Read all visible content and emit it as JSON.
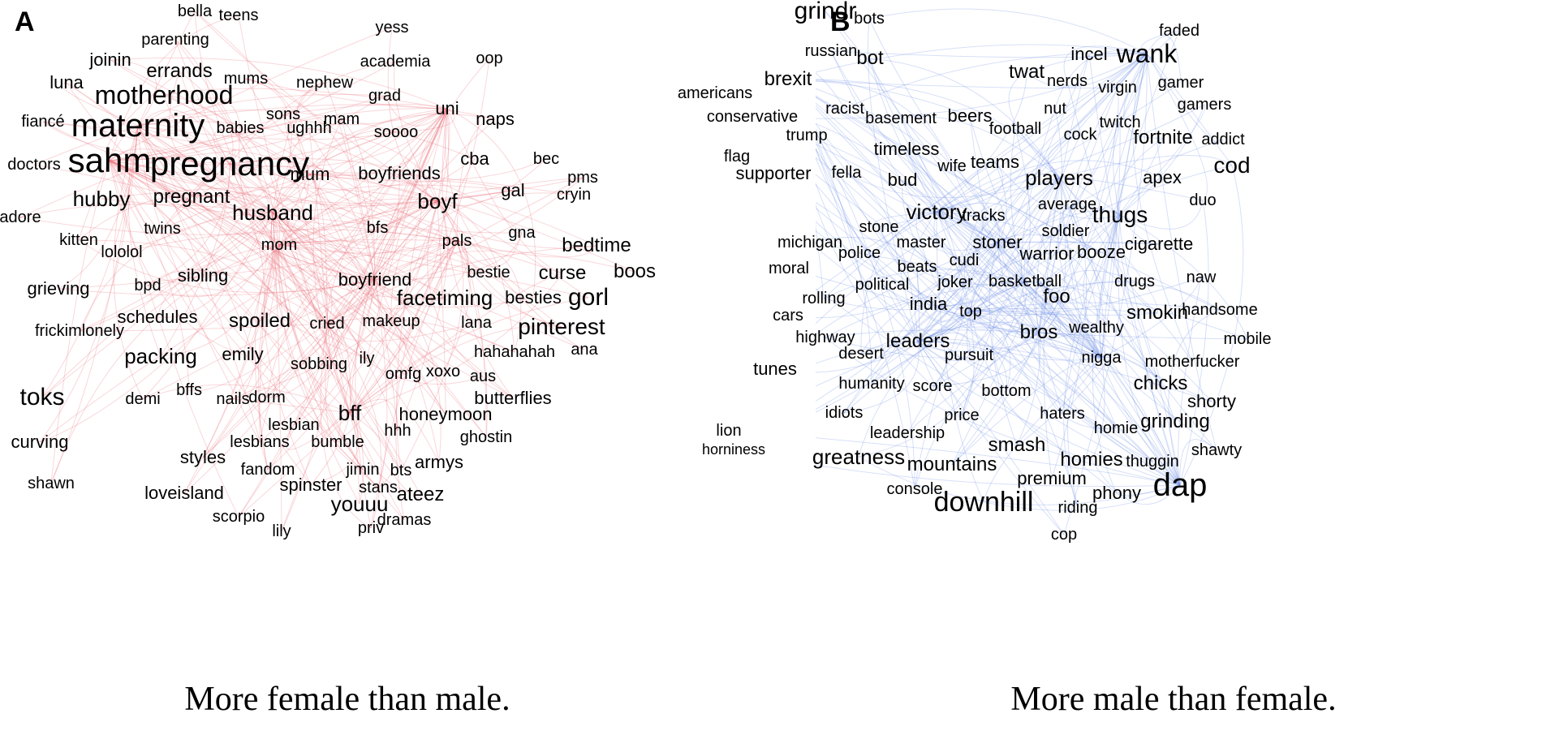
{
  "panels": [
    {
      "letter": "A",
      "caption": "More female than male.",
      "edge_color": "#e8707a",
      "words": [
        {
          "t": "bella",
          "s": 20
        },
        {
          "t": "teens",
          "s": 20
        },
        {
          "t": "yess",
          "s": 20
        },
        {
          "t": "parenting",
          "s": 20
        },
        {
          "t": "academia",
          "s": 20
        },
        {
          "t": "oop",
          "s": 20
        },
        {
          "t": "joinin",
          "s": 22
        },
        {
          "t": "errands",
          "s": 24
        },
        {
          "t": "mums",
          "s": 20
        },
        {
          "t": "nephew",
          "s": 20
        },
        {
          "t": "luna",
          "s": 22
        },
        {
          "t": "motherhood",
          "s": 32
        },
        {
          "t": "grad",
          "s": 20
        },
        {
          "t": "uni",
          "s": 22
        },
        {
          "t": "sons",
          "s": 20
        },
        {
          "t": "mam",
          "s": 20
        },
        {
          "t": "fiancé",
          "s": 20
        },
        {
          "t": "maternity",
          "s": 40
        },
        {
          "t": "babies",
          "s": 20
        },
        {
          "t": "ughhh",
          "s": 20
        },
        {
          "t": "naps",
          "s": 22
        },
        {
          "t": "soooo",
          "s": 20
        },
        {
          "t": "cba",
          "s": 22
        },
        {
          "t": "bec",
          "s": 20
        },
        {
          "t": "sahm",
          "s": 42
        },
        {
          "t": "pregnancy",
          "s": 42
        },
        {
          "t": "doctors",
          "s": 20
        },
        {
          "t": "mum",
          "s": 22
        },
        {
          "t": "boyfriends",
          "s": 22
        },
        {
          "t": "pms",
          "s": 20
        },
        {
          "t": "gal",
          "s": 22
        },
        {
          "t": "cryin",
          "s": 20
        },
        {
          "t": "hubby",
          "s": 26
        },
        {
          "t": "pregnant",
          "s": 24
        },
        {
          "t": "boyf",
          "s": 26
        },
        {
          "t": "husband",
          "s": 26
        },
        {
          "t": "adore",
          "s": 20
        },
        {
          "t": "twins",
          "s": 20
        },
        {
          "t": "bfs",
          "s": 20
        },
        {
          "t": "gna",
          "s": 20
        },
        {
          "t": "kitten",
          "s": 20
        },
        {
          "t": "mom",
          "s": 20
        },
        {
          "t": "pals",
          "s": 20
        },
        {
          "t": "bedtime",
          "s": 24
        },
        {
          "t": "lololol",
          "s": 20
        },
        {
          "t": "curse",
          "s": 24
        },
        {
          "t": "boos",
          "s": 24
        },
        {
          "t": "sibling",
          "s": 22
        },
        {
          "t": "bestie",
          "s": 20
        },
        {
          "t": "boyfriend",
          "s": 22
        },
        {
          "t": "grieving",
          "s": 22
        },
        {
          "t": "bpd",
          "s": 20
        },
        {
          "t": "facetiming",
          "s": 26
        },
        {
          "t": "besties",
          "s": 22
        },
        {
          "t": "gorl",
          "s": 30
        },
        {
          "t": "schedules",
          "s": 22
        },
        {
          "t": "makeup",
          "s": 20
        },
        {
          "t": "lana",
          "s": 20
        },
        {
          "t": "spoiled",
          "s": 24
        },
        {
          "t": "cried",
          "s": 20
        },
        {
          "t": "frickimlonely",
          "s": 20
        },
        {
          "t": "pinterest",
          "s": 28
        },
        {
          "t": "packing",
          "s": 26
        },
        {
          "t": "ana",
          "s": 20
        },
        {
          "t": "hahahahah",
          "s": 20
        },
        {
          "t": "emily",
          "s": 22
        },
        {
          "t": "ily",
          "s": 20
        },
        {
          "t": "sobbing",
          "s": 20
        },
        {
          "t": "aus",
          "s": 20
        },
        {
          "t": "omfg",
          "s": 20
        },
        {
          "t": "xoxo",
          "s": 20
        },
        {
          "t": "toks",
          "s": 30
        },
        {
          "t": "butterflies",
          "s": 22
        },
        {
          "t": "demi",
          "s": 20
        },
        {
          "t": "bffs",
          "s": 20
        },
        {
          "t": "nails",
          "s": 20
        },
        {
          "t": "dorm",
          "s": 20
        },
        {
          "t": "bff",
          "s": 26
        },
        {
          "t": "honeymoon",
          "s": 22
        },
        {
          "t": "lesbian",
          "s": 20
        },
        {
          "t": "hhh",
          "s": 20
        },
        {
          "t": "curving",
          "s": 22
        },
        {
          "t": "lesbians",
          "s": 20
        },
        {
          "t": "bumble",
          "s": 20
        },
        {
          "t": "ghostin",
          "s": 20
        },
        {
          "t": "styles",
          "s": 22
        },
        {
          "t": "armys",
          "s": 22
        },
        {
          "t": "fandom",
          "s": 20
        },
        {
          "t": "jimin",
          "s": 20
        },
        {
          "t": "bts",
          "s": 20
        },
        {
          "t": "shawn",
          "s": 20
        },
        {
          "t": "spinster",
          "s": 22
        },
        {
          "t": "stans",
          "s": 20
        },
        {
          "t": "ateez",
          "s": 24
        },
        {
          "t": "loveisland",
          "s": 22
        },
        {
          "t": "youuu",
          "s": 26
        },
        {
          "t": "scorpio",
          "s": 20
        },
        {
          "t": "dramas",
          "s": 20
        },
        {
          "t": "lily",
          "s": 20
        },
        {
          "t": "priv",
          "s": 20
        }
      ]
    },
    {
      "letter": "B",
      "caption": "More male than female.",
      "edge_color": "#6f8fe6",
      "words": [
        {
          "t": "grindr",
          "s": 30
        },
        {
          "t": "bots",
          "s": 20
        },
        {
          "t": "faded",
          "s": 20
        },
        {
          "t": "russian",
          "s": 20
        },
        {
          "t": "bot",
          "s": 24
        },
        {
          "t": "incel",
          "s": 22
        },
        {
          "t": "wank",
          "s": 32
        },
        {
          "t": "americans",
          "s": 20
        },
        {
          "t": "brexit",
          "s": 24
        },
        {
          "t": "twat",
          "s": 24
        },
        {
          "t": "nerds",
          "s": 20
        },
        {
          "t": "virgin",
          "s": 20
        },
        {
          "t": "gamer",
          "s": 20
        },
        {
          "t": "racist",
          "s": 20
        },
        {
          "t": "nut",
          "s": 20
        },
        {
          "t": "gamers",
          "s": 20
        },
        {
          "t": "conservative",
          "s": 20
        },
        {
          "t": "basement",
          "s": 20
        },
        {
          "t": "beers",
          "s": 22
        },
        {
          "t": "twitch",
          "s": 20
        },
        {
          "t": "football",
          "s": 20
        },
        {
          "t": "cock",
          "s": 20
        },
        {
          "t": "trump",
          "s": 20
        },
        {
          "t": "fortnite",
          "s": 24
        },
        {
          "t": "addict",
          "s": 20
        },
        {
          "t": "timeless",
          "s": 22
        },
        {
          "t": "flag",
          "s": 20
        },
        {
          "t": "wife",
          "s": 20
        },
        {
          "t": "teams",
          "s": 22
        },
        {
          "t": "cod",
          "s": 28
        },
        {
          "t": "supporter",
          "s": 22
        },
        {
          "t": "fella",
          "s": 20
        },
        {
          "t": "bud",
          "s": 22
        },
        {
          "t": "players",
          "s": 26
        },
        {
          "t": "apex",
          "s": 22
        },
        {
          "t": "duo",
          "s": 20
        },
        {
          "t": "victory",
          "s": 26
        },
        {
          "t": "average",
          "s": 20
        },
        {
          "t": "tracks",
          "s": 20
        },
        {
          "t": "thugs",
          "s": 28
        },
        {
          "t": "stone",
          "s": 20
        },
        {
          "t": "soldier",
          "s": 20
        },
        {
          "t": "michigan",
          "s": 20
        },
        {
          "t": "master",
          "s": 20
        },
        {
          "t": "stoner",
          "s": 22
        },
        {
          "t": "cigarette",
          "s": 22
        },
        {
          "t": "police",
          "s": 20
        },
        {
          "t": "warrior",
          "s": 22
        },
        {
          "t": "booze",
          "s": 22
        },
        {
          "t": "moral",
          "s": 20
        },
        {
          "t": "beats",
          "s": 20
        },
        {
          "t": "cudi",
          "s": 20
        },
        {
          "t": "naw",
          "s": 20
        },
        {
          "t": "political",
          "s": 20
        },
        {
          "t": "joker",
          "s": 20
        },
        {
          "t": "basketball",
          "s": 20
        },
        {
          "t": "drugs",
          "s": 20
        },
        {
          "t": "rolling",
          "s": 20
        },
        {
          "t": "foo",
          "s": 24
        },
        {
          "t": "india",
          "s": 22
        },
        {
          "t": "smokin",
          "s": 24
        },
        {
          "t": "handsome",
          "s": 20
        },
        {
          "t": "cars",
          "s": 20
        },
        {
          "t": "top",
          "s": 20
        },
        {
          "t": "highway",
          "s": 20
        },
        {
          "t": "bros",
          "s": 24
        },
        {
          "t": "wealthy",
          "s": 20
        },
        {
          "t": "mobile",
          "s": 20
        },
        {
          "t": "leaders",
          "s": 24
        },
        {
          "t": "desert",
          "s": 20
        },
        {
          "t": "pursuit",
          "s": 20
        },
        {
          "t": "nigga",
          "s": 20
        },
        {
          "t": "motherfucker",
          "s": 20
        },
        {
          "t": "tunes",
          "s": 22
        },
        {
          "t": "chicks",
          "s": 24
        },
        {
          "t": "humanity",
          "s": 20
        },
        {
          "t": "score",
          "s": 20
        },
        {
          "t": "bottom",
          "s": 20
        },
        {
          "t": "shorty",
          "s": 22
        },
        {
          "t": "idiots",
          "s": 20
        },
        {
          "t": "price",
          "s": 20
        },
        {
          "t": "haters",
          "s": 20
        },
        {
          "t": "grinding",
          "s": 24
        },
        {
          "t": "homie",
          "s": 20
        },
        {
          "t": "lion",
          "s": 20
        },
        {
          "t": "leadership",
          "s": 20
        },
        {
          "t": "smash",
          "s": 24
        },
        {
          "t": "horniness",
          "s": 18
        },
        {
          "t": "shawty",
          "s": 20
        },
        {
          "t": "greatness",
          "s": 26
        },
        {
          "t": "homies",
          "s": 24
        },
        {
          "t": "thuggin",
          "s": 20
        },
        {
          "t": "mountains",
          "s": 24
        },
        {
          "t": "premium",
          "s": 22
        },
        {
          "t": "console",
          "s": 20
        },
        {
          "t": "dap",
          "s": 40
        },
        {
          "t": "phony",
          "s": 22
        },
        {
          "t": "downhill",
          "s": 34
        },
        {
          "t": "riding",
          "s": 20
        },
        {
          "t": "cop",
          "s": 20
        }
      ]
    }
  ]
}
